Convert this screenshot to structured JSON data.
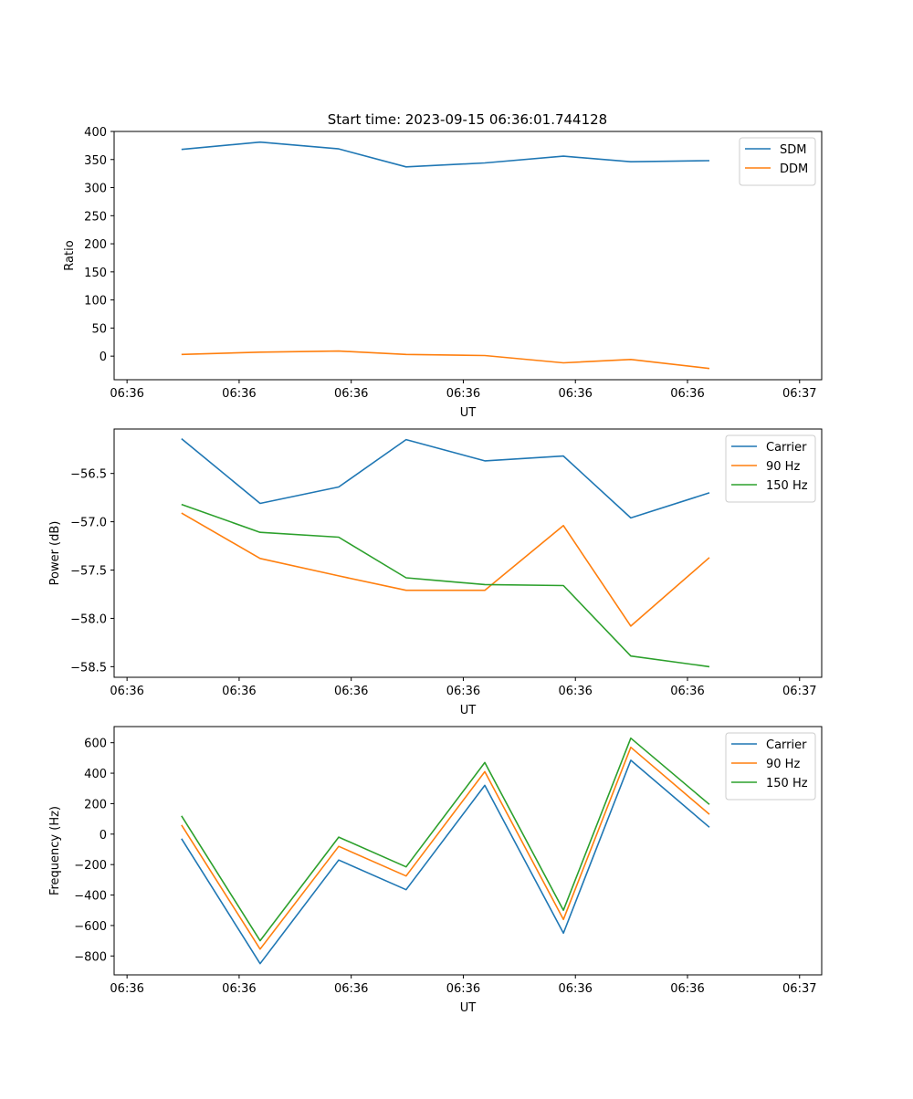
{
  "figure_title": "Start time: 2023-09-15 06:36:01.744128",
  "chart_data": [
    {
      "type": "line",
      "xlabel": "UT",
      "ylabel": "Ratio",
      "x": [
        0.6,
        1.3,
        2.0,
        2.6,
        3.3,
        4.0,
        4.6,
        5.3
      ],
      "xlim": [
        0,
        6.3
      ],
      "ylim": [
        -42,
        400
      ],
      "xtick_values": [
        0.115,
        1.113,
        2.111,
        3.109,
        4.107,
        5.105,
        6.103
      ],
      "xticklabels": [
        "06:36",
        "06:36",
        "06:36",
        "06:36",
        "06:36",
        "06:36",
        "06:37"
      ],
      "yticks": [
        0,
        50,
        100,
        150,
        200,
        250,
        300,
        350,
        400
      ],
      "yticklabels": [
        "0",
        "50",
        "100",
        "150",
        "200",
        "250",
        "300",
        "350",
        "400"
      ],
      "legend_position": "top-right",
      "series": [
        {
          "name": "SDM",
          "color": "#1f77b4",
          "values": [
            368,
            381,
            369,
            337,
            344,
            356,
            346,
            348
          ]
        },
        {
          "name": "DDM",
          "color": "#ff7f0e",
          "values": [
            3,
            7,
            9,
            3,
            1,
            -12,
            -6,
            -22
          ]
        }
      ]
    },
    {
      "type": "line",
      "xlabel": "UT",
      "ylabel": "Power (dB)",
      "x": [
        0.6,
        1.3,
        2.0,
        2.6,
        3.3,
        4.0,
        4.6,
        5.3
      ],
      "xlim": [
        0,
        6.3
      ],
      "ylim": [
        -58.61,
        -56.04
      ],
      "xtick_values": [
        0.115,
        1.113,
        2.111,
        3.109,
        4.107,
        5.105,
        6.103
      ],
      "xticklabels": [
        "06:36",
        "06:36",
        "06:36",
        "06:36",
        "06:36",
        "06:36",
        "06:37"
      ],
      "yticks": [
        -56.5,
        -57.0,
        -57.5,
        -58.0,
        -58.5
      ],
      "yticklabels": [
        "−56.5",
        "−57.0",
        "−57.5",
        "−58.0",
        "−58.5"
      ],
      "legend_position": "top-right",
      "series": [
        {
          "name": "Carrier",
          "color": "#1f77b4",
          "values": [
            -56.14,
            -56.81,
            -56.64,
            -56.15,
            -56.37,
            -56.32,
            -56.96,
            -56.7
          ]
        },
        {
          "name": "90 Hz",
          "color": "#ff7f0e",
          "values": [
            -56.91,
            -57.38,
            -57.56,
            -57.71,
            -57.71,
            -57.04,
            -58.08,
            -57.37
          ]
        },
        {
          "name": "150 Hz",
          "color": "#2ca02c",
          "values": [
            -56.82,
            -57.11,
            -57.16,
            -57.58,
            -57.65,
            -57.66,
            -58.39,
            -58.5
          ]
        }
      ]
    },
    {
      "type": "line",
      "xlabel": "UT",
      "ylabel": "Frequency (Hz)",
      "x": [
        0.6,
        1.3,
        2.0,
        2.6,
        3.3,
        4.0,
        4.6,
        5.3
      ],
      "xlim": [
        0,
        6.3
      ],
      "ylim": [
        -924,
        706
      ],
      "xtick_values": [
        0.115,
        1.113,
        2.111,
        3.109,
        4.107,
        5.105,
        6.103
      ],
      "xticklabels": [
        "06:36",
        "06:36",
        "06:36",
        "06:36",
        "06:36",
        "06:36",
        "06:37"
      ],
      "yticks": [
        600,
        400,
        200,
        0,
        -200,
        -400,
        -600,
        -800
      ],
      "yticklabels": [
        "600",
        "400",
        "200",
        "0",
        "−200",
        "−400",
        "−600",
        "−800"
      ],
      "legend_position": "top-right",
      "series": [
        {
          "name": "Carrier",
          "color": "#1f77b4",
          "values": [
            -30,
            -850,
            -170,
            -365,
            320,
            -650,
            485,
            45
          ]
        },
        {
          "name": "90 Hz",
          "color": "#ff7f0e",
          "values": [
            60,
            -755,
            -80,
            -275,
            410,
            -560,
            570,
            130
          ]
        },
        {
          "name": "150 Hz",
          "color": "#2ca02c",
          "values": [
            120,
            -700,
            -20,
            -215,
            470,
            -500,
            630,
            195
          ]
        }
      ]
    }
  ]
}
